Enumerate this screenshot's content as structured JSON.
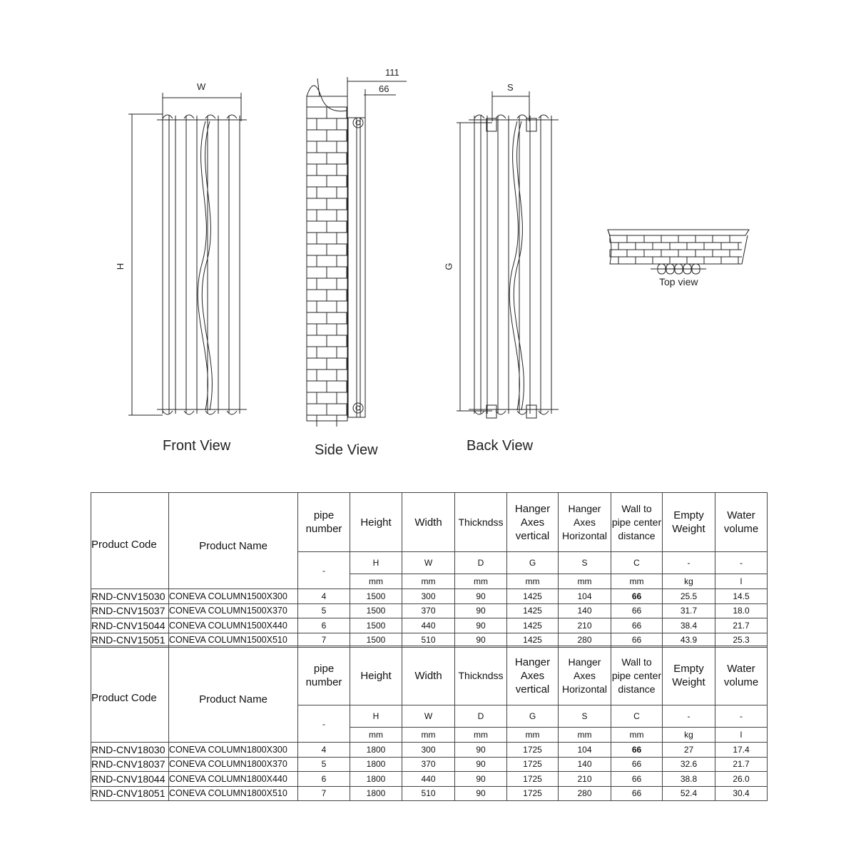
{
  "drawing": {
    "dimensions": {
      "W": "W",
      "H": "H",
      "G": "G",
      "S": "S",
      "side_total": "111",
      "side_c": "66"
    },
    "views": {
      "front": "Front View",
      "side": "Side View",
      "back": "Back View",
      "top": "Top view"
    }
  },
  "table_headers": {
    "code": "Product Code",
    "name": "Product Name",
    "pipes": "pipe number",
    "height": "Height",
    "width": "Width",
    "thick": "Thickndss",
    "hv": "Hanger Axes vertical",
    "hh": "Hanger Axes Horizontal",
    "wall": "Wall to pipe center distance",
    "weight": "Empty Weight",
    "water": "Water volume",
    "symbols": [
      "-",
      "H",
      "W",
      "D",
      "G",
      "S",
      "C",
      "-",
      "-"
    ],
    "units": [
      "mm",
      "mm",
      "mm",
      "mm",
      "mm",
      "mm",
      "kg",
      "l"
    ]
  },
  "tables": [
    {
      "rows": [
        [
          "RND-CNV15030",
          "CONEVA COLUMN1500X300",
          "4",
          "1500",
          "300",
          "90",
          "1425",
          "104",
          "66",
          "25.5",
          "14.5"
        ],
        [
          "RND-CNV15037",
          "CONEVA COLUMN1500X370",
          "5",
          "1500",
          "370",
          "90",
          "1425",
          "140",
          "66",
          "31.7",
          "18.0"
        ],
        [
          "RND-CNV15044",
          "CONEVA COLUMN1500X440",
          "6",
          "1500",
          "440",
          "90",
          "1425",
          "210",
          "66",
          "38.4",
          "21.7"
        ],
        [
          "RND-CNV15051",
          "CONEVA COLUMN1500X510",
          "7",
          "1500",
          "510",
          "90",
          "1425",
          "280",
          "66",
          "43.9",
          "25.3"
        ]
      ]
    },
    {
      "rows": [
        [
          "RND-CNV18030",
          "CONEVA COLUMN1800X300",
          "4",
          "1800",
          "300",
          "90",
          "1725",
          "104",
          "66",
          "27",
          "17.4"
        ],
        [
          "RND-CNV18037",
          "CONEVA COLUMN1800X370",
          "5",
          "1800",
          "370",
          "90",
          "1725",
          "140",
          "66",
          "32.6",
          "21.7"
        ],
        [
          "RND-CNV18044",
          "CONEVA COLUMN1800X440",
          "6",
          "1800",
          "440",
          "90",
          "1725",
          "210",
          "66",
          "38.8",
          "26.0"
        ],
        [
          "RND-CNV18051",
          "CONEVA COLUMN1800X510",
          "7",
          "1800",
          "510",
          "90",
          "1725",
          "280",
          "66",
          "52.4",
          "30.4"
        ]
      ]
    }
  ]
}
